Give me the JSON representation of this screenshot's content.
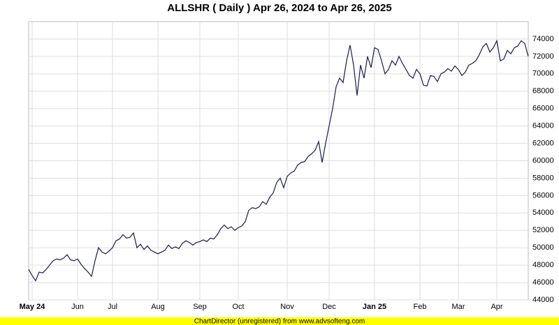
{
  "chart_data": {
    "type": "line",
    "title": "ALLSHR ( Daily ) Apr 26, 2024 to Apr 26, 2025",
    "footer": "ChartDirector (unregistered) from www.advsofteng.com",
    "categories": [
      null,
      "May 24",
      null,
      null,
      null,
      null,
      null,
      null,
      null,
      null,
      null,
      null,
      null,
      null,
      "Jun",
      null,
      null,
      null,
      null,
      null,
      null,
      null,
      null,
      null,
      "Jul",
      null,
      null,
      null,
      null,
      null,
      null,
      null,
      null,
      null,
      null,
      null,
      null,
      "Aug",
      null,
      null,
      null,
      null,
      null,
      null,
      null,
      null,
      null,
      null,
      null,
      "Sep",
      null,
      null,
      null,
      null,
      null,
      null,
      null,
      null,
      null,
      null,
      "Oct",
      null,
      null,
      null,
      null,
      null,
      null,
      null,
      null,
      null,
      null,
      null,
      null,
      null,
      "Nov",
      null,
      null,
      null,
      null,
      null,
      null,
      null,
      null,
      null,
      null,
      null,
      "Dec",
      null,
      null,
      null,
      null,
      null,
      null,
      null,
      null,
      null,
      null,
      null,
      null,
      "Jan 25",
      null,
      null,
      null,
      null,
      null,
      null,
      null,
      null,
      null,
      null,
      null,
      null,
      "Feb",
      null,
      null,
      null,
      null,
      null,
      null,
      null,
      null,
      null,
      null,
      "Mar",
      null,
      null,
      null,
      null,
      null,
      null,
      null,
      null,
      null,
      null,
      "Apr",
      null,
      null,
      null,
      null,
      null,
      null,
      null,
      null,
      null
    ],
    "values": [
      47500,
      46800,
      46200,
      47200,
      47100,
      47500,
      48000,
      48500,
      48700,
      48600,
      48800,
      49200,
      48600,
      48500,
      48700,
      48100,
      47600,
      47200,
      46700,
      48500,
      50000,
      49500,
      49300,
      49600,
      50000,
      50800,
      51000,
      51500,
      51100,
      51200,
      51700,
      50000,
      50400,
      49800,
      50200,
      49700,
      49500,
      49300,
      49500,
      49700,
      50300,
      49900,
      50100,
      49900,
      50500,
      50800,
      50600,
      50300,
      50600,
      50700,
      50900,
      50700,
      51100,
      51000,
      51500,
      52200,
      52600,
      52200,
      52400,
      52000,
      52300,
      52500,
      53000,
      54300,
      54600,
      54500,
      54700,
      55300,
      55000,
      55800,
      56300,
      57500,
      58000,
      56900,
      58200,
      58600,
      58800,
      59500,
      59800,
      59900,
      60500,
      60800,
      61200,
      62200,
      59800,
      62000,
      64000,
      66000,
      68500,
      69500,
      69000,
      71500,
      73300,
      71000,
      67500,
      71000,
      69500,
      72000,
      70700,
      73000,
      72800,
      71500,
      70000,
      70500,
      71500,
      71000,
      72000,
      71200,
      70500,
      69800,
      69500,
      70500,
      70000,
      68700,
      68600,
      69800,
      69700,
      69100,
      70000,
      70200,
      70600,
      70300,
      70900,
      70500,
      69800,
      70200,
      71000,
      71200,
      71500,
      72200,
      73100,
      73500,
      72500,
      73000,
      73800,
      71500,
      71700,
      72700,
      72300,
      73000,
      73200,
      73800,
      73500,
      72000
    ],
    "color": "#1a1a4e",
    "ylim": [
      44000,
      76000
    ],
    "yticks": [
      44000,
      46000,
      48000,
      50000,
      52000,
      54000,
      56000,
      58000,
      60000,
      62000,
      64000,
      66000,
      68000,
      70000,
      72000,
      74000
    ],
    "grid": true
  }
}
